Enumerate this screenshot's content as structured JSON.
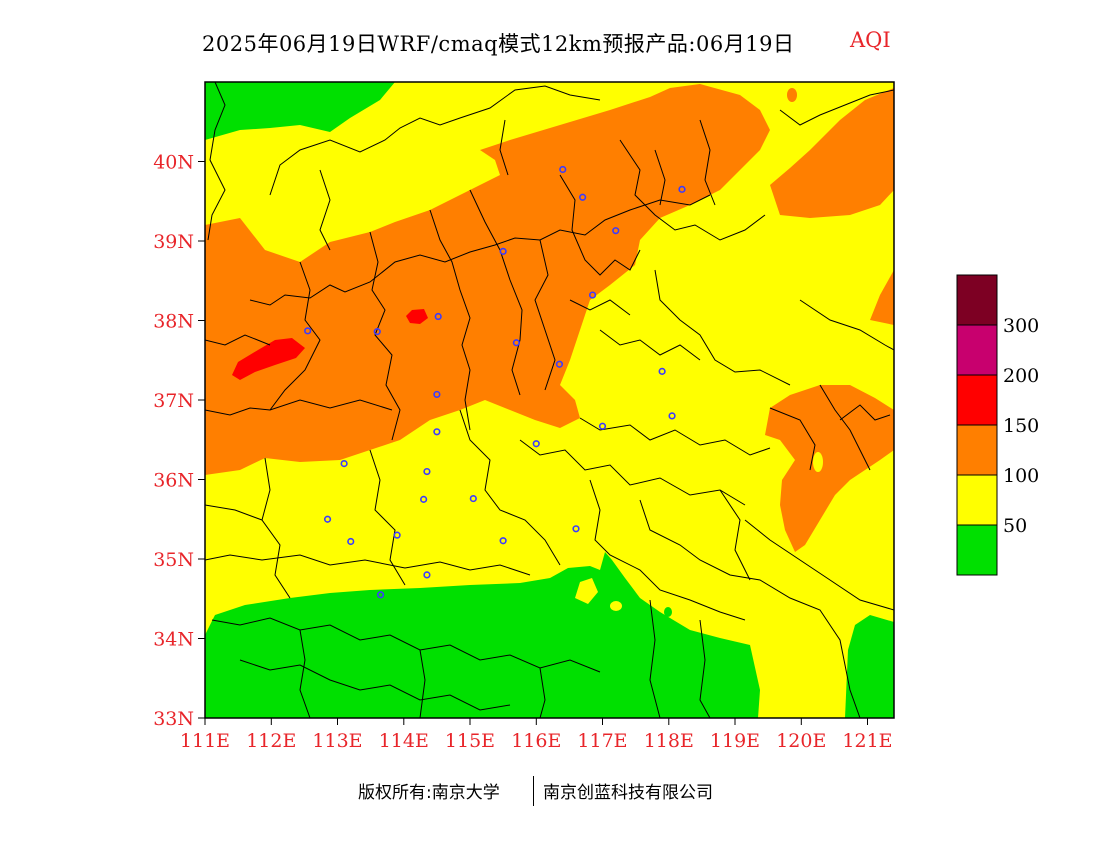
{
  "title": {
    "main": "2025年06月19日WRF/cmaq模式12km预报产品:06月19日",
    "variable": "AQI"
  },
  "map": {
    "lon_range": [
      111,
      121.4
    ],
    "lat_range": [
      33,
      41
    ],
    "y_ticks": [
      "33N",
      "34N",
      "35N",
      "36N",
      "37N",
      "38N",
      "39N",
      "40N"
    ],
    "x_ticks": [
      "111E",
      "112E",
      "113E",
      "114E",
      "115E",
      "116E",
      "117E",
      "118E",
      "119E",
      "120E",
      "121E"
    ],
    "colors": {
      "good": "#00e000",
      "moderate": "#ffff00",
      "unhealthy_sensitive": "#ff7f00",
      "unhealthy": "#ff0000",
      "very_unhealthy": "#c8006e",
      "hazardous": "#7d0023",
      "border": "#000000",
      "station": "#3b3bff"
    },
    "stations": [
      [
        116.4,
        39.9
      ],
      [
        116.7,
        39.55
      ],
      [
        117.2,
        39.13
      ],
      [
        118.2,
        39.65
      ],
      [
        115.5,
        38.87
      ],
      [
        116.85,
        38.32
      ],
      [
        114.52,
        38.05
      ],
      [
        113.6,
        37.86
      ],
      [
        112.55,
        37.87
      ],
      [
        115.7,
        37.72
      ],
      [
        116.35,
        37.45
      ],
      [
        114.5,
        37.07
      ],
      [
        114.5,
        36.6
      ],
      [
        116.0,
        36.45
      ],
      [
        117.0,
        36.67
      ],
      [
        118.05,
        36.8
      ],
      [
        117.9,
        37.36
      ],
      [
        113.1,
        36.2
      ],
      [
        114.35,
        36.1
      ],
      [
        114.3,
        35.75
      ],
      [
        115.05,
        35.76
      ],
      [
        112.85,
        35.5
      ],
      [
        113.2,
        35.22
      ],
      [
        113.9,
        35.3
      ],
      [
        115.5,
        35.23
      ],
      [
        116.6,
        35.38
      ],
      [
        114.35,
        34.8
      ],
      [
        113.65,
        34.55
      ]
    ]
  },
  "legend": {
    "levels": [
      "50",
      "100",
      "150",
      "200",
      "300"
    ]
  },
  "footer": {
    "left": "版权所有:南京大学",
    "right": "南京创蓝科技有限公司"
  }
}
